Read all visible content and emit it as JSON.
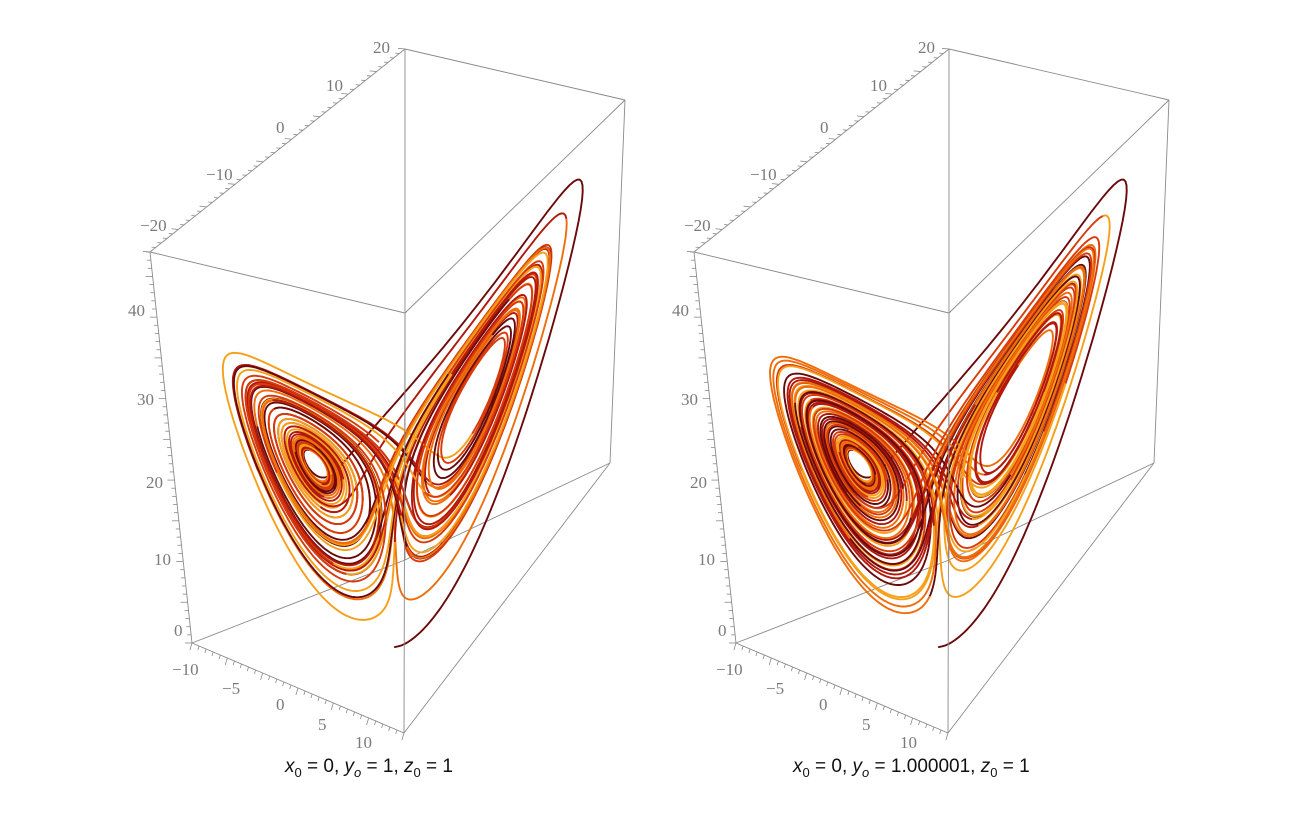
{
  "chart_data": [
    {
      "type": "line",
      "title": "",
      "axes": {
        "x": {
          "ticks": [
            "−10",
            "−5",
            "0",
            "5",
            "10"
          ],
          "range": [
            -12,
            12
          ]
        },
        "y": {
          "ticks": [
            "−20",
            "−10",
            "0",
            "10",
            "20"
          ],
          "range": [
            -25,
            20
          ]
        },
        "z": {
          "ticks": [
            "0",
            "10",
            "20",
            "30",
            "40"
          ],
          "range": [
            0,
            48
          ]
        }
      },
      "initial_conditions": {
        "x0": "0",
        "y0": "1",
        "z0": "1"
      },
      "caption": {
        "x_sym": "x",
        "x_sub": "0",
        "x_val": " = 0,  ",
        "y_sym": "y",
        "y_sub": "o",
        "y_val": " = 1, ",
        "z_sym": "z",
        "z_sub": "0",
        "z_val": " = 1"
      },
      "colors": [
        "#6b0a0a",
        "#b2180c",
        "#d83a0a",
        "#ef6d0a",
        "#f6a019"
      ]
    },
    {
      "type": "line",
      "title": "",
      "axes": {
        "x": {
          "ticks": [
            "−10",
            "−5",
            "0",
            "5",
            "10"
          ],
          "range": [
            -12,
            12
          ]
        },
        "y": {
          "ticks": [
            "−20",
            "−10",
            "0",
            "10",
            "20"
          ],
          "range": [
            -25,
            20
          ]
        },
        "z": {
          "ticks": [
            "0",
            "10",
            "20",
            "30",
            "40"
          ],
          "range": [
            0,
            48
          ]
        }
      },
      "initial_conditions": {
        "x0": "0",
        "y0": "1.000001",
        "z0": "1"
      },
      "caption": {
        "x_sym": "x",
        "x_sub": "0",
        "x_val": " = 0,  ",
        "y_sym": "y",
        "y_sub": "o",
        "y_val": " = 1.000001, ",
        "z_sym": "z",
        "z_sub": "0",
        "z_val": " = 1"
      },
      "colors": [
        "#6b0a0a",
        "#b2180c",
        "#d83a0a",
        "#ef6d0a",
        "#f6a019"
      ]
    }
  ]
}
